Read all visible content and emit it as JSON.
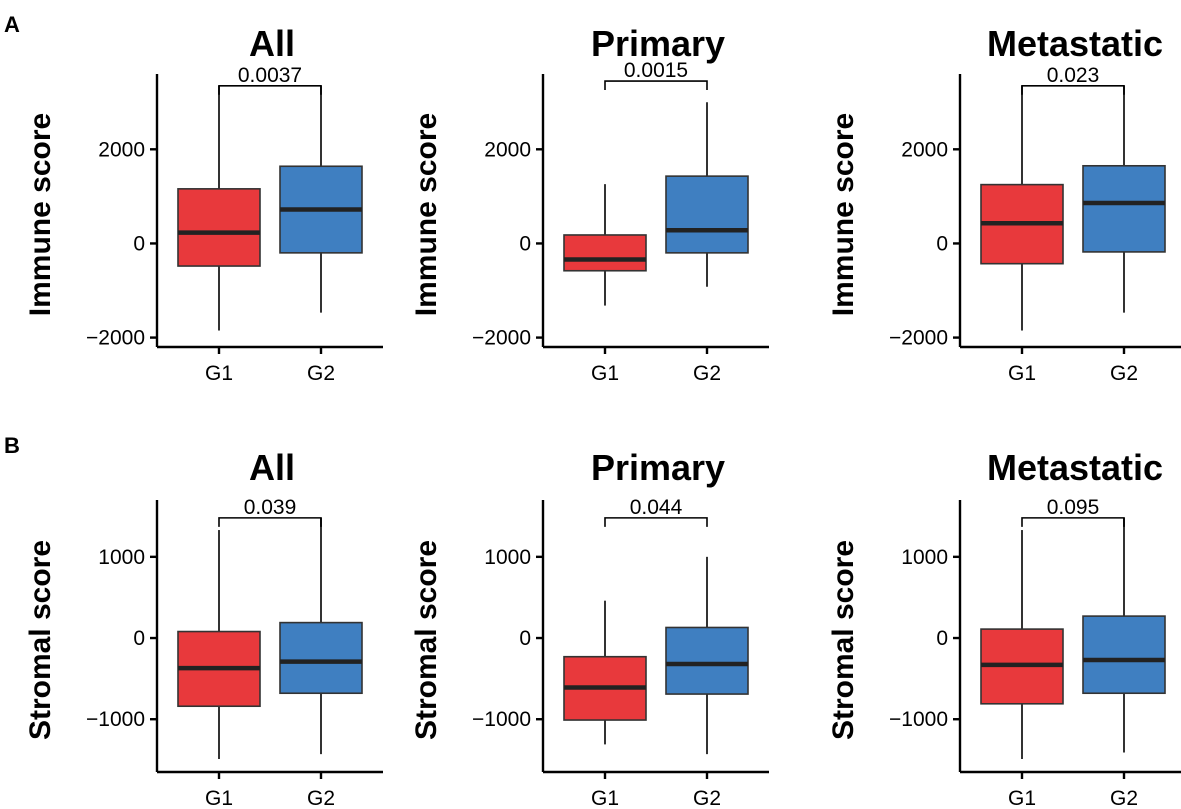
{
  "panel_labels": [
    "A",
    "B"
  ],
  "colors": {
    "G1": "#E8393C",
    "G2": "#3F7FC1"
  },
  "chart_data": [
    {
      "type": "boxplot",
      "row": 0,
      "col": 0,
      "title": "All",
      "ylabel": "Immune score",
      "ylim": [
        -2200,
        3600
      ],
      "yticks": [
        2000,
        0,
        -2000
      ],
      "ytick_labels": [
        "2000",
        "0",
        "−2000"
      ],
      "categories": [
        "G1",
        "G2"
      ],
      "boxes": [
        {
          "group": "G1",
          "whisker_low": -1850,
          "q1": -480,
          "median": 230,
          "q3": 1160,
          "whisker_high": 3350
        },
        {
          "group": "G2",
          "whisker_low": -1470,
          "q1": -200,
          "median": 720,
          "q3": 1640,
          "whisker_high": 3350
        }
      ],
      "pvalue": "0.0037",
      "pvalue_y": 3350
    },
    {
      "type": "boxplot",
      "row": 0,
      "col": 1,
      "title": "Primary",
      "ylabel": "Immune score",
      "ylim": [
        -2200,
        3600
      ],
      "yticks": [
        2000,
        0,
        -2000
      ],
      "ytick_labels": [
        "2000",
        "0",
        "−2000"
      ],
      "categories": [
        "G1",
        "G2"
      ],
      "boxes": [
        {
          "group": "G1",
          "whisker_low": -1320,
          "q1": -580,
          "median": -340,
          "q3": 180,
          "whisker_high": 1260
        },
        {
          "group": "G2",
          "whisker_low": -920,
          "q1": -200,
          "median": 280,
          "q3": 1430,
          "whisker_high": 3000
        }
      ],
      "pvalue": "0.0015",
      "pvalue_y": 3450
    },
    {
      "type": "boxplot",
      "row": 0,
      "col": 2,
      "title": "Metastatic",
      "ylabel": "Immune score",
      "ylim": [
        -2200,
        3600
      ],
      "yticks": [
        2000,
        0,
        -2000
      ],
      "ytick_labels": [
        "2000",
        "0",
        "−2000"
      ],
      "categories": [
        "G1",
        "G2"
      ],
      "boxes": [
        {
          "group": "G1",
          "whisker_low": -1850,
          "q1": -430,
          "median": 430,
          "q3": 1250,
          "whisker_high": 3350
        },
        {
          "group": "G2",
          "whisker_low": -1470,
          "q1": -180,
          "median": 860,
          "q3": 1650,
          "whisker_high": 3350
        }
      ],
      "pvalue": "0.023",
      "pvalue_y": 3350
    },
    {
      "type": "boxplot",
      "row": 1,
      "col": 0,
      "title": "All",
      "ylabel": "Stromal score",
      "ylim": [
        -1650,
        1700
      ],
      "yticks": [
        1000,
        0,
        -1000
      ],
      "ytick_labels": [
        "1000",
        "0",
        "−1000"
      ],
      "categories": [
        "G1",
        "G2"
      ],
      "boxes": [
        {
          "group": "G1",
          "whisker_low": -1490,
          "q1": -840,
          "median": -370,
          "q3": 80,
          "whisker_high": 1330
        },
        {
          "group": "G2",
          "whisker_low": -1430,
          "q1": -680,
          "median": -290,
          "q3": 190,
          "whisker_high": 1480
        }
      ],
      "pvalue": "0.039",
      "pvalue_y": 1480
    },
    {
      "type": "boxplot",
      "row": 1,
      "col": 1,
      "title": "Primary",
      "ylabel": "Stromal score",
      "ylim": [
        -1650,
        1700
      ],
      "yticks": [
        1000,
        0,
        -1000
      ],
      "ytick_labels": [
        "1000",
        "0",
        "−1000"
      ],
      "categories": [
        "G1",
        "G2"
      ],
      "boxes": [
        {
          "group": "G1",
          "whisker_low": -1310,
          "q1": -1010,
          "median": -610,
          "q3": -230,
          "whisker_high": 460
        },
        {
          "group": "G2",
          "whisker_low": -1430,
          "q1": -690,
          "median": -320,
          "q3": 130,
          "whisker_high": 1000
        }
      ],
      "pvalue": "0.044",
      "pvalue_y": 1480
    },
    {
      "type": "boxplot",
      "row": 1,
      "col": 2,
      "title": "Metastatic",
      "ylabel": "Stromal score",
      "ylim": [
        -1650,
        1700
      ],
      "yticks": [
        1000,
        0,
        -1000
      ],
      "ytick_labels": [
        "1000",
        "0",
        "−1000"
      ],
      "categories": [
        "G1",
        "G2"
      ],
      "boxes": [
        {
          "group": "G1",
          "whisker_low": -1490,
          "q1": -810,
          "median": -330,
          "q3": 110,
          "whisker_high": 1330
        },
        {
          "group": "G2",
          "whisker_low": -1410,
          "q1": -680,
          "median": -270,
          "q3": 270,
          "whisker_high": 1480
        }
      ],
      "pvalue": "0.095",
      "pvalue_y": 1480
    }
  ]
}
